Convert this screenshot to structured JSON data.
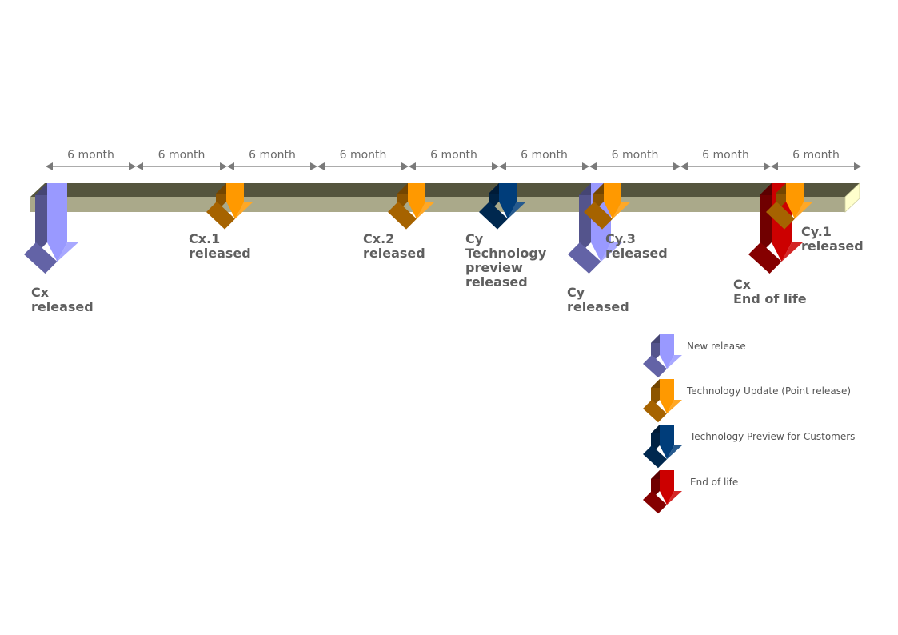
{
  "colors": {
    "new_release": "#9999ff",
    "point_release": "#ff9900",
    "tech_preview": "#003d7a",
    "end_of_life": "#cc0000",
    "bar_front": "#aaa98a",
    "bar_top": "#55553e",
    "bar_end": "#ffffcc"
  },
  "spans": [
    "6 month",
    "6 month",
    "6 month",
    "6 month",
    "6 month",
    "6 month",
    "6 month",
    "6 month",
    "6 month"
  ],
  "events": [
    {
      "kind": "new_release",
      "icon": "arrow-down-icon",
      "lines": [
        "Cx",
        "released"
      ]
    },
    {
      "kind": "point_release",
      "icon": "arrow-down-icon",
      "lines": [
        "Cx.1",
        "released"
      ]
    },
    {
      "kind": "point_release",
      "icon": "arrow-down-icon",
      "lines": [
        "Cx.2",
        "released"
      ]
    },
    {
      "kind": "tech_preview",
      "icon": "arrow-down-icon",
      "lines": [
        "Cy",
        "Technology",
        "preview",
        "released"
      ]
    },
    {
      "kind": "new_release",
      "icon": "arrow-down-icon",
      "lines": [
        "Cy",
        "released"
      ]
    },
    {
      "kind": "point_release",
      "icon": "arrow-down-icon",
      "lines": [
        "Cy.3",
        "released"
      ]
    },
    {
      "kind": "end_of_life",
      "icon": "arrow-down-icon",
      "lines": [
        "Cx",
        "End of life"
      ]
    },
    {
      "kind": "point_release",
      "icon": "arrow-down-icon",
      "lines": [
        "Cy.1",
        "released"
      ]
    }
  ],
  "legend": [
    {
      "kind": "new_release",
      "icon": "arrow-down-icon",
      "label": "New release"
    },
    {
      "kind": "point_release",
      "icon": "arrow-down-icon",
      "label": "Technology Update (Point release)"
    },
    {
      "kind": "tech_preview",
      "icon": "arrow-down-icon",
      "label": "Technology Preview for Customers"
    },
    {
      "kind": "end_of_life",
      "icon": "arrow-down-icon",
      "label": "End of life"
    }
  ]
}
